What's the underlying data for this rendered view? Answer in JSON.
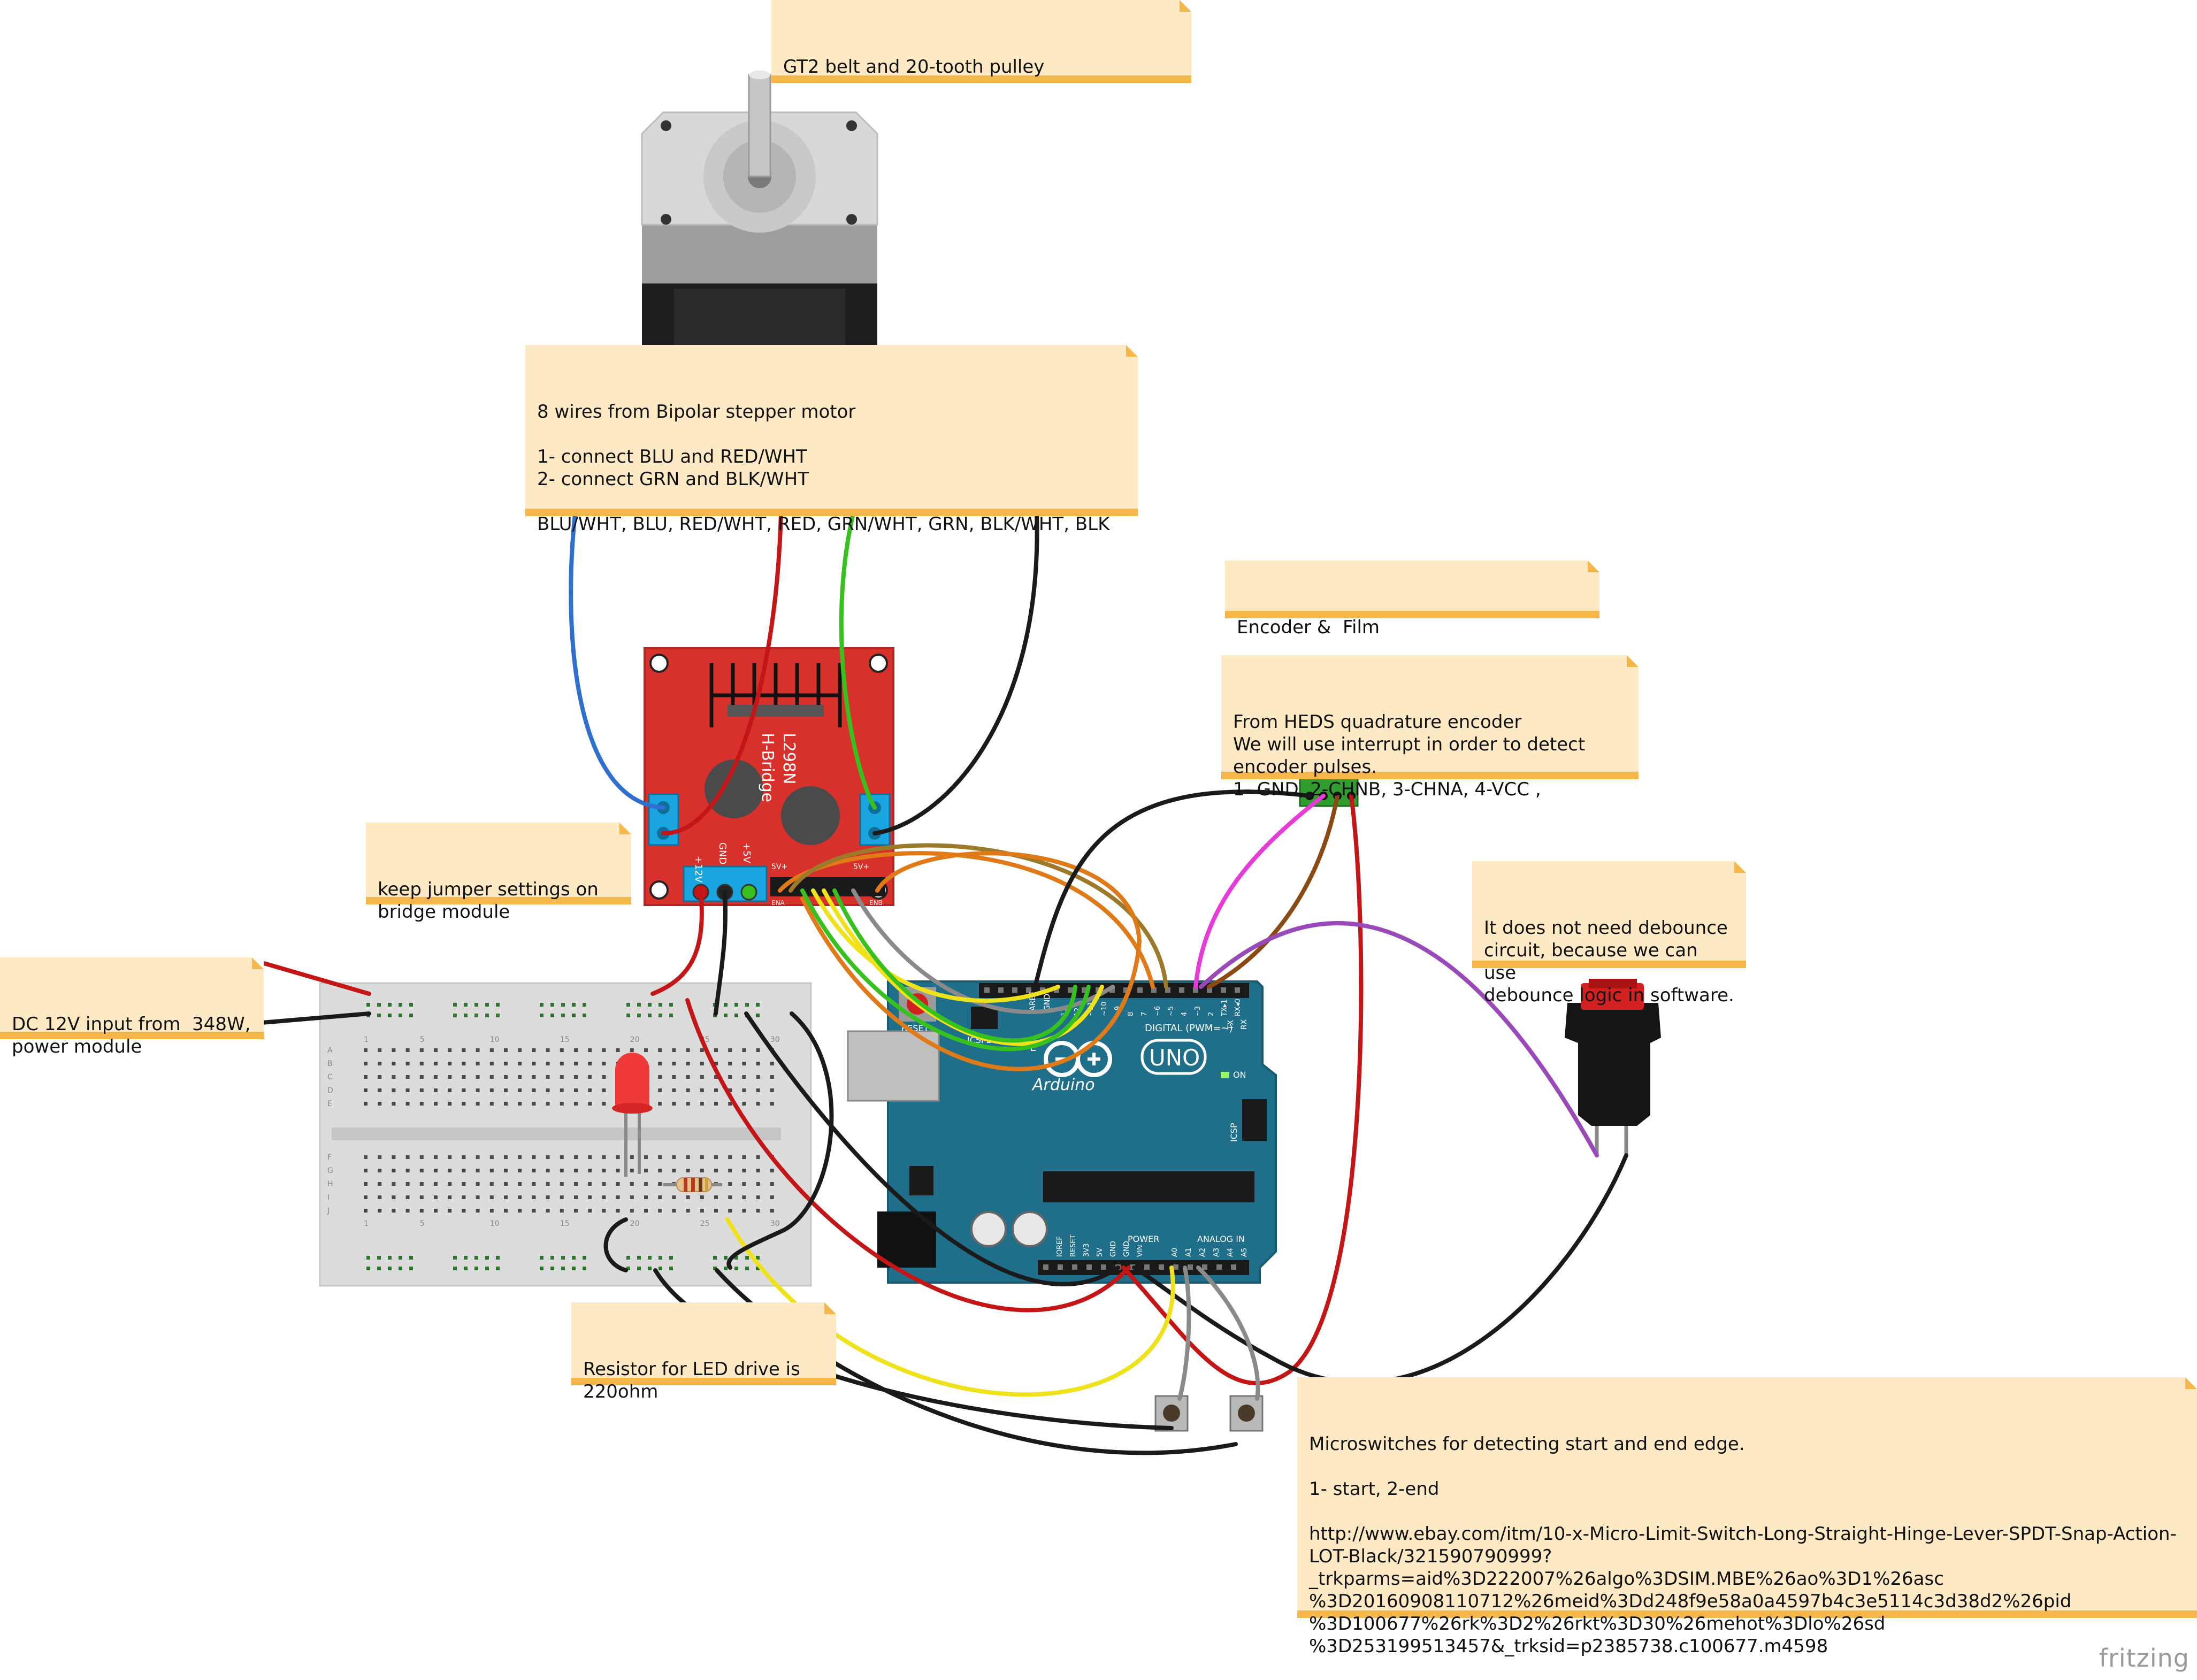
{
  "notes": {
    "belt": "GT2 belt and 20-tooth pulley",
    "stepper": "8 wires from Bipolar stepper motor\n\n1- connect BLU and RED/WHT\n2- connect GRN and BLK/WHT\n\nBLU/WHT, BLU, RED/WHT, RED, GRN/WHT, GRN, BLK/WHT, BLK",
    "encoder_film": "Encoder &  Film",
    "encoder_heds": "From HEDS quadrature encoder\nWe will use interrupt in order to detect\nencoder pulses.\n1- GND, 2-CHNB, 3-CHNA, 4-VCC ,",
    "jumper": "keep jumper settings on\nbridge module",
    "dc_input": "DC 12V input from  348W,\npower module",
    "debounce": "It does not need debounce\ncircuit, because we can use\ndebounce logic in software.",
    "resistor": "Resistor for LED drive is\n220ohm",
    "microswitch": "Microswitches for detecting start and end edge.\n\n1- start, 2-end\n\nhttp://www.ebay.com/itm/10-x-Micro-Limit-Switch-Long-Straight-Hinge-Lever-SPDT-Snap-Action-\nLOT-Black/321590790999?_trkparms=aid%3D222007%26algo%3DSIM.MBE%26ao%3D1%26asc\n%3D20160908110712%26meid%3Dd248f9e58a0a4597b4c3e5114c3d38d2%26pid\n%3D100677%26rk%3D2%26rkt%3D30%26mehot%3Dlo%26sd\n%3D253199513457&_trksid=p2385738.c100677.m4598"
  },
  "hbridge": {
    "label_line1": "L298N",
    "label_line2": "H-Bridge",
    "pin_12v": "+12V",
    "pin_gnd": "GND",
    "pin_5v": "+5V",
    "jumper_left": "5V+",
    "jumper_right": "5V+",
    "header_ena": "ENA",
    "header_enb": "ENB"
  },
  "arduino": {
    "model": "UNO",
    "brand": "Arduino",
    "digital_label": "DIGITAL (PWM=~)",
    "power_label": "POWER",
    "analog_label": "ANALOG IN",
    "on_label": "ON",
    "icsp_label": "ICSP",
    "icsp2_label": "ICSP2",
    "reset_label": "RESET",
    "aref": "AREF",
    "gnd": "GND",
    "tx": "TX",
    "rx": "RX",
    "l_label": "L",
    "digital_pins": [
      "13",
      "12",
      "~11",
      "~10",
      "~9",
      "8",
      "7",
      "~6",
      "~5",
      "4",
      "~3",
      "2",
      "TX▸1",
      "RX◂0"
    ],
    "power_pins": [
      "IOREF",
      "RESET",
      "3V3",
      "5V",
      "GND",
      "GND",
      "VIN"
    ],
    "analog_pins": [
      "A0",
      "A1",
      "A2",
      "A3",
      "A4",
      "A5"
    ]
  },
  "breadboard": {
    "col_numbers": [
      "1",
      "5",
      "10",
      "15",
      "20",
      "25",
      "30"
    ],
    "row_letters_top": [
      "A",
      "B",
      "C",
      "D",
      "E"
    ],
    "row_letters_bottom": [
      "F",
      "G",
      "H",
      "I",
      "J"
    ]
  },
  "watermark": "fritzing",
  "colors": {
    "note_bg": "#fde9c4",
    "note_bar": "#f6b74a",
    "hbridge_board": "#d8302b",
    "arduino_board": "#1f6f8b",
    "wire_blue": "#2e6fd0",
    "wire_red": "#c41616",
    "wire_green": "#37c11f",
    "wire_black": "#1a1a1a",
    "wire_yellow": "#f0e21a",
    "wire_orange": "#e07a18",
    "wire_olive": "#9c7a2a",
    "wire_brown": "#8a4a12",
    "wire_magenta": "#e83ad8",
    "wire_purple": "#9a4ab8",
    "wire_gray": "#8a8a8a"
  }
}
